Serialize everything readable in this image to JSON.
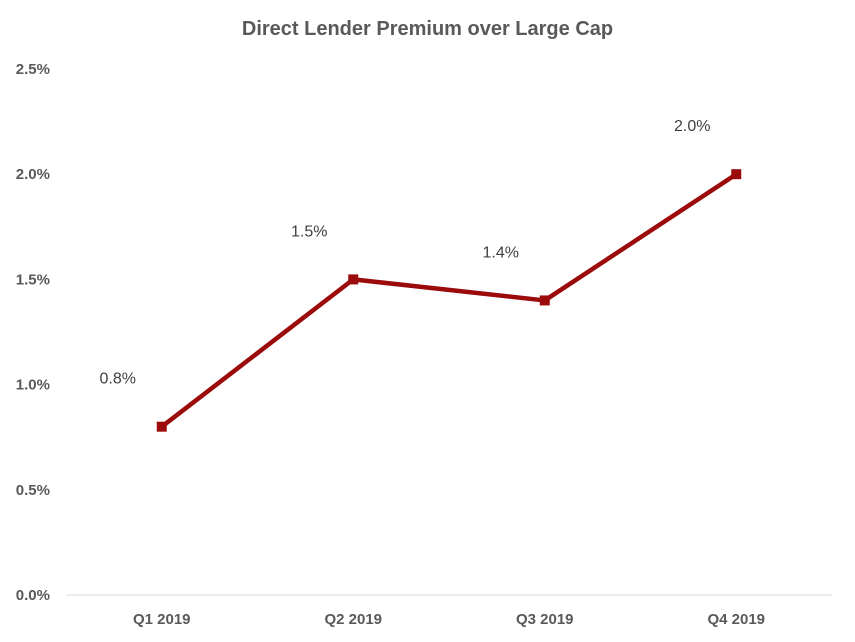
{
  "chart_data": {
    "type": "line",
    "title": "Direct Lender Premium over Large Cap",
    "categories": [
      "Q1 2019",
      "Q2 2019",
      "Q3 2019",
      "Q4 2019"
    ],
    "series": [
      {
        "values": [
          0.8,
          1.5,
          1.4,
          2.0
        ],
        "data_labels": [
          "0.8%",
          "1.5%",
          "1.4%",
          "2.0%"
        ],
        "color": "#9b0b0b",
        "marker": "square"
      }
    ],
    "ylim": [
      0,
      2.5
    ],
    "yticks": [
      0,
      0.5,
      1.0,
      1.5,
      2.0,
      2.5
    ],
    "ytick_labels": [
      "0.0%",
      "0.5%",
      "1.0%",
      "1.5%",
      "2.0%",
      "2.5%"
    ],
    "xlabel": "",
    "ylabel": "",
    "grid": false,
    "legend": "none"
  }
}
